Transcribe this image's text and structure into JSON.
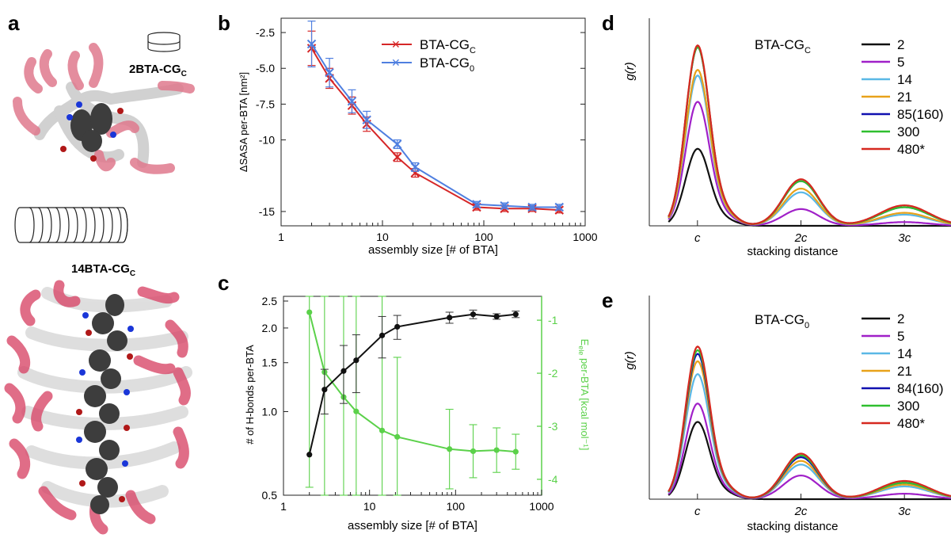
{
  "panels": {
    "a": {
      "letter": "a",
      "small_label": "2BTA-CG",
      "small_label_sub": "C",
      "large_label": "14BTA-CG",
      "large_label_sub": "C"
    },
    "b": {
      "letter": "b"
    },
    "c": {
      "letter": "c"
    },
    "d": {
      "letter": "d"
    },
    "e": {
      "letter": "e"
    }
  },
  "colors": {
    "red": "#d62728",
    "blue": "#4f7fe0",
    "black": "#111111",
    "green": "#5bd14a",
    "purple": "#a020c8",
    "lightblue": "#5ab8e6",
    "orange": "#e8a21a",
    "darkblue": "#1010b0",
    "brightgreen": "#2fbf2f",
    "rdfred": "#d6281f",
    "pink": "#d9496a",
    "gray": "#9a9a9a",
    "atom_dark": "#3a3a3a"
  },
  "chart_data": [
    {
      "id": "b",
      "type": "line",
      "ylabel": "ΔSASA per-BTA [nm²]",
      "xlabel": "assembly size [# of BTA]",
      "xscale": "log",
      "xlim": [
        1,
        1000
      ],
      "ylim": [
        -16,
        -1.5
      ],
      "xticks": [
        1,
        10,
        100,
        1000
      ],
      "xtick_labels": [
        "1",
        "10",
        "100",
        "1000"
      ],
      "yticks": [
        -2.5,
        -5.0,
        -7.5,
        -10,
        -15
      ],
      "ytick_labels": [
        "-2.5",
        "-5.0",
        "-7.5",
        "-10",
        "-15"
      ],
      "legend_position": "top-center",
      "series": [
        {
          "name": "BTA-CG",
          "name_sub": "C",
          "color": "red",
          "marker": "x",
          "x": [
            2,
            3,
            5,
            7,
            14,
            21,
            85,
            160,
            300,
            555
          ],
          "y": [
            -3.6,
            -5.7,
            -7.6,
            -8.9,
            -11.2,
            -12.3,
            -14.7,
            -14.8,
            -14.8,
            -14.9
          ],
          "err": [
            1.2,
            0.7,
            0.6,
            0.5,
            0.3,
            0.3,
            0.2,
            0.2,
            0.2,
            0.2
          ]
        },
        {
          "name": "BTA-CG",
          "name_sub": "0",
          "color": "blue",
          "marker": "x",
          "x": [
            2,
            3,
            5,
            7,
            14,
            21,
            85,
            160,
            300,
            555
          ],
          "y": [
            -3.3,
            -5.3,
            -7.3,
            -8.6,
            -10.3,
            -11.9,
            -14.5,
            -14.6,
            -14.7,
            -14.7
          ],
          "err": [
            1.6,
            1.0,
            0.8,
            0.6,
            0.3,
            0.3,
            0.2,
            0.2,
            0.2,
            0.2
          ]
        }
      ]
    },
    {
      "id": "c",
      "type": "line",
      "xlabel": "assembly size [# of BTA]",
      "ylabel": "# of H-bonds per-BTA",
      "y2label": "E",
      "y2label_sub": "ele",
      "y2label_rest": " per-BTA [kcal mol⁻¹]",
      "xscale": "log",
      "xlim": [
        1,
        1000
      ],
      "yscale": "log",
      "ylim": [
        0.5,
        2.6
      ],
      "xticks": [
        1,
        10,
        100,
        1000
      ],
      "xtick_labels": [
        "1",
        "10",
        "100",
        "1000"
      ],
      "yticks": [
        0.5,
        1.0,
        1.5,
        2.0,
        2.5
      ],
      "ytick_labels": [
        "0.5",
        "1.0",
        "1.5",
        "2.0",
        "2.5"
      ],
      "y2lim": [
        -4.3,
        -0.55
      ],
      "y2ticks": [
        -1,
        -2,
        -3,
        -4
      ],
      "y2tick_labels": [
        "-1",
        "-2",
        "-3",
        "-4"
      ],
      "series": [
        {
          "axis": "left",
          "color": "black",
          "marker": "circle",
          "x": [
            2,
            3,
            5,
            7,
            14,
            21,
            85,
            160,
            300,
            500
          ],
          "y": [
            0.7,
            1.2,
            1.4,
            1.53,
            1.88,
            2.02,
            2.18,
            2.24,
            2.2,
            2.24
          ],
          "err_lo": [
            0.0,
            0.22,
            0.33,
            0.36,
            0.32,
            0.2,
            0.1,
            0.08,
            0.05,
            0.06
          ],
          "err_hi": [
            0.0,
            0.22,
            0.33,
            0.36,
            0.32,
            0.2,
            0.1,
            0.08,
            0.05,
            0.06
          ]
        },
        {
          "axis": "right",
          "color": "green",
          "marker": "circle",
          "x": [
            2,
            3,
            5,
            7,
            14,
            21,
            85,
            160,
            300,
            500
          ],
          "y": [
            -0.85,
            -1.98,
            -2.45,
            -2.72,
            -3.08,
            -3.2,
            -3.43,
            -3.47,
            -3.45,
            -3.48
          ],
          "err": [
            3.3,
            3.2,
            3.0,
            2.9,
            2.8,
            1.5,
            0.75,
            0.5,
            0.42,
            0.33
          ]
        }
      ]
    },
    {
      "id": "d",
      "type": "line",
      "ylabel": "g(r)",
      "xlabel": "stacking distance",
      "xlim": [
        0.55,
        3.45
      ],
      "ylim": [
        0,
        1.0
      ],
      "xticks": [
        1,
        2,
        3
      ],
      "xtick_labels": [
        "c",
        "2c",
        "3c"
      ],
      "legend_title": "BTA-CG",
      "legend_title_sub": "C",
      "legend_position": "top-right",
      "series": [
        {
          "name": "2",
          "color": "black",
          "peaks": [
            0.41,
            0.0,
            0.0
          ]
        },
        {
          "name": "5",
          "color": "purple",
          "peaks": [
            0.66,
            0.09,
            0.02
          ]
        },
        {
          "name": "14",
          "color": "lightblue",
          "peaks": [
            0.8,
            0.18,
            0.06
          ]
        },
        {
          "name": "21",
          "color": "orange",
          "peaks": [
            0.83,
            0.2,
            0.07
          ]
        },
        {
          "name": "85(160)",
          "color": "darkblue",
          "peaks": [
            0.95,
            0.24,
            0.1
          ]
        },
        {
          "name": "300",
          "color": "brightgreen",
          "peaks": [
            0.95,
            0.24,
            0.1
          ]
        },
        {
          "name": "480*",
          "color": "rdfred",
          "peaks": [
            0.96,
            0.25,
            0.11
          ]
        }
      ]
    },
    {
      "id": "e",
      "type": "line",
      "ylabel": "g(r)",
      "xlabel": "stacking distance",
      "xlim": [
        0.55,
        3.45
      ],
      "ylim": [
        0,
        1.0
      ],
      "xticks": [
        1,
        2,
        3
      ],
      "xtick_labels": [
        "c",
        "2c",
        "3c"
      ],
      "legend_title": "BTA-CG",
      "legend_title_sub": "0",
      "legend_position": "top-right",
      "series": [
        {
          "name": "2",
          "color": "black",
          "peaks": [
            0.42,
            0.0,
            0.0
          ]
        },
        {
          "name": "5",
          "color": "purple",
          "peaks": [
            0.52,
            0.13,
            0.03
          ]
        },
        {
          "name": "14",
          "color": "lightblue",
          "peaks": [
            0.68,
            0.19,
            0.07
          ]
        },
        {
          "name": "21",
          "color": "orange",
          "peaks": [
            0.75,
            0.21,
            0.08
          ]
        },
        {
          "name": "84(160)",
          "color": "darkblue",
          "peaks": [
            0.79,
            0.23,
            0.09
          ]
        },
        {
          "name": "300",
          "color": "brightgreen",
          "peaks": [
            0.81,
            0.24,
            0.09
          ]
        },
        {
          "name": "480*",
          "color": "rdfred",
          "peaks": [
            0.83,
            0.25,
            0.1
          ]
        }
      ]
    }
  ]
}
